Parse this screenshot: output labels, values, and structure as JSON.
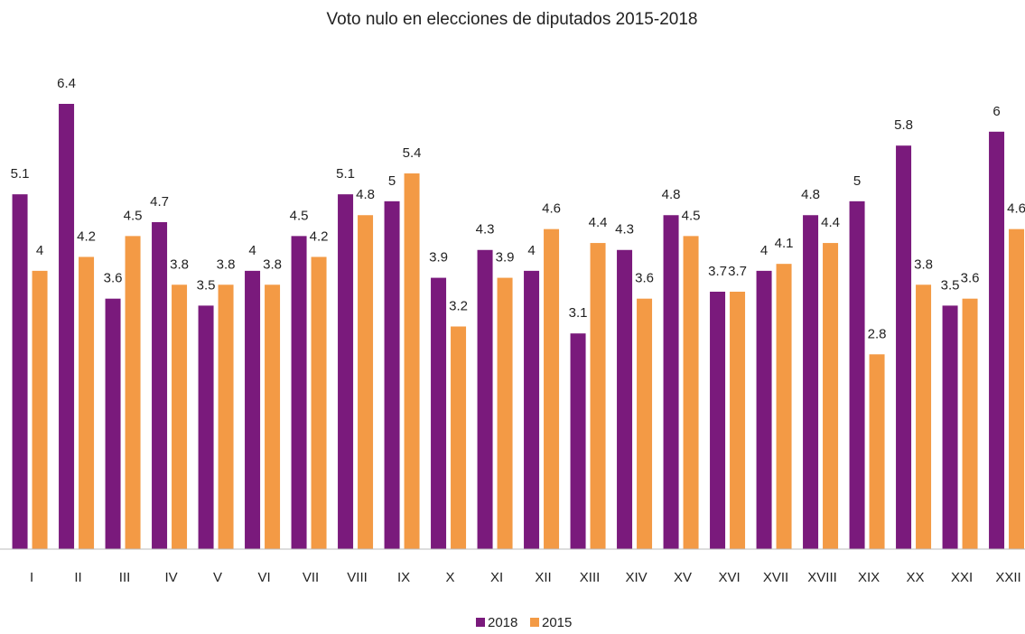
{
  "chart_data": {
    "type": "bar",
    "title": "Voto nulo en elecciones de diputados 2015-2018",
    "categories": [
      "I",
      "II",
      "III",
      "IV",
      "V",
      "VI",
      "VII",
      "VIII",
      "IX",
      "X",
      "XI",
      "XII",
      "XIII",
      "XIV",
      "XV",
      "XVI",
      "XVII",
      "XVIII",
      "XIX",
      "XX",
      "XXI",
      "XXII"
    ],
    "series": [
      {
        "name": "2018",
        "color": "#7a1a7c",
        "values": [
          5.1,
          6.4,
          3.6,
          4.7,
          3.5,
          4,
          4.5,
          5.1,
          5,
          3.9,
          4.3,
          4,
          3.1,
          4.3,
          4.8,
          3.7,
          4,
          4.8,
          5,
          5.8,
          3.5,
          6
        ]
      },
      {
        "name": "2015",
        "color": "#f39a45",
        "values": [
          4,
          4.2,
          4.5,
          3.8,
          3.8,
          3.8,
          4.2,
          4.8,
          5.4,
          3.2,
          3.9,
          4.6,
          4.4,
          3.6,
          4.5,
          3.7,
          4.1,
          4.4,
          2.8,
          3.8,
          3.6,
          4.6
        ]
      }
    ],
    "legend": "bottom"
  }
}
